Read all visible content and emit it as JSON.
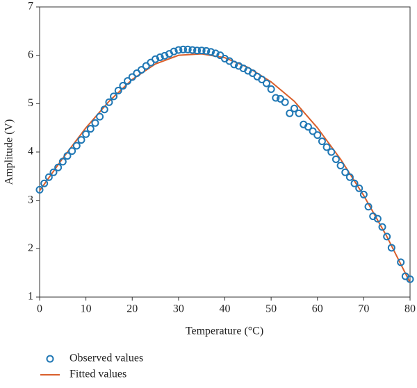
{
  "chart_data": {
    "type": "scatter",
    "xlabel": "Temperature (°C)",
    "ylabel": "Amplitude (V)",
    "xlim": [
      0,
      80
    ],
    "xticks": [
      0,
      10,
      20,
      30,
      40,
      50,
      60,
      70,
      80
    ],
    "ylim": [
      1,
      7
    ],
    "yticks": [
      1,
      2,
      3,
      4,
      5,
      6,
      7
    ],
    "legend": "bottom-left",
    "series": [
      {
        "name": "Observed values",
        "type": "scatter",
        "color": "#1f77b4",
        "x": [
          0,
          1,
          2,
          3,
          4,
          5,
          6,
          7,
          8,
          9,
          10,
          11,
          12,
          13,
          14,
          15,
          16,
          17,
          18,
          19,
          20,
          21,
          22,
          23,
          24,
          25,
          26,
          27,
          28,
          29,
          30,
          31,
          32,
          33,
          34,
          35,
          36,
          37,
          38,
          39,
          40,
          41,
          42,
          43,
          44,
          45,
          46,
          47,
          48,
          49,
          50,
          51,
          52,
          53,
          54,
          55,
          56,
          57,
          58,
          59,
          60,
          61,
          62,
          63,
          64,
          65,
          66,
          67,
          68,
          69,
          70,
          71,
          72,
          73,
          74,
          75,
          76,
          78,
          79,
          80
        ],
        "values": [
          3.22,
          3.35,
          3.48,
          3.58,
          3.68,
          3.8,
          3.92,
          4.02,
          4.13,
          4.25,
          4.37,
          4.48,
          4.6,
          4.73,
          4.88,
          5.03,
          5.15,
          5.27,
          5.37,
          5.47,
          5.55,
          5.63,
          5.7,
          5.78,
          5.85,
          5.92,
          5.96,
          5.99,
          6.03,
          6.08,
          6.11,
          6.12,
          6.12,
          6.11,
          6.1,
          6.1,
          6.09,
          6.07,
          6.04,
          6.0,
          5.93,
          5.88,
          5.81,
          5.78,
          5.73,
          5.68,
          5.63,
          5.56,
          5.5,
          5.42,
          5.3,
          5.12,
          5.1,
          5.03,
          4.8,
          4.9,
          4.8,
          4.57,
          4.52,
          4.43,
          4.35,
          4.22,
          4.1,
          4.0,
          3.85,
          3.72,
          3.58,
          3.48,
          3.35,
          3.25,
          3.12,
          2.87,
          2.67,
          2.62,
          2.45,
          2.25,
          2.02,
          1.72,
          1.43,
          1.37
        ]
      },
      {
        "name": "Fitted values",
        "type": "line",
        "color": "#d95f2b",
        "x": [
          0,
          5,
          10,
          15,
          20,
          25,
          30,
          35,
          40,
          45,
          50,
          55,
          60,
          65,
          70,
          75,
          80
        ],
        "values": [
          3.2,
          3.87,
          4.5,
          5.05,
          5.5,
          5.82,
          6.0,
          6.03,
          5.95,
          5.75,
          5.45,
          5.05,
          4.5,
          3.85,
          3.1,
          2.25,
          1.3
        ]
      }
    ]
  }
}
